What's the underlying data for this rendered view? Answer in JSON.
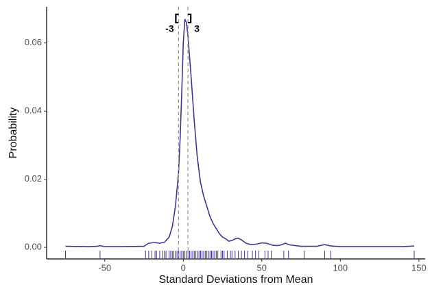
{
  "chart_data": {
    "type": "density",
    "xlabel": "Standard Deviations from Mean",
    "ylabel": "Probability",
    "color": "#3d3494",
    "x": [
      -75,
      -60,
      -55,
      -53,
      -50,
      -40,
      -25,
      -22,
      -18,
      -15,
      -12,
      -9,
      -7,
      -5,
      -3,
      -2,
      -1,
      0,
      1,
      2,
      3,
      5,
      7,
      9,
      11,
      13,
      15,
      17,
      19,
      21,
      23,
      25,
      27,
      29,
      31,
      33,
      35,
      37,
      40,
      43,
      46,
      50,
      53,
      57,
      60,
      63,
      65,
      68,
      75,
      85,
      90,
      94,
      100,
      120,
      140,
      147
    ],
    "values": [
      0.0003,
      0.0002,
      0.0003,
      0.0005,
      0.0002,
      0.0002,
      0.0003,
      0.0012,
      0.0014,
      0.0012,
      0.0015,
      0.003,
      0.006,
      0.012,
      0.022,
      0.032,
      0.045,
      0.06,
      0.067,
      0.066,
      0.062,
      0.05,
      0.037,
      0.026,
      0.019,
      0.015,
      0.012,
      0.009,
      0.007,
      0.0055,
      0.004,
      0.003,
      0.0025,
      0.0018,
      0.002,
      0.0025,
      0.0027,
      0.0022,
      0.0012,
      0.0008,
      0.0009,
      0.0013,
      0.0012,
      0.0006,
      0.0005,
      0.0008,
      0.0012,
      0.0007,
      0.0003,
      0.0003,
      0.0008,
      0.0004,
      0.0002,
      0.0002,
      0.0002,
      0.0004
    ],
    "rug": [
      -75,
      -53,
      -24,
      -22,
      -20,
      -18,
      -17,
      -15,
      -13,
      -12,
      -11,
      -9,
      -8,
      -7,
      -6,
      -5,
      -4,
      -3,
      -2,
      -1,
      0,
      1,
      2,
      3,
      4,
      5,
      6,
      7,
      8,
      9,
      10,
      11,
      12,
      13,
      14,
      15,
      16,
      17,
      18,
      19,
      20,
      21,
      22,
      24,
      25,
      26,
      28,
      30,
      31,
      33,
      35,
      37,
      39,
      41,
      44,
      46,
      48,
      52,
      54,
      56,
      64,
      67,
      77,
      90,
      94,
      147
    ],
    "vlines": [
      -3,
      3
    ],
    "xlim": [
      -87,
      154
    ],
    "ylim": [
      -0.0034,
      0.0706
    ],
    "xticks": [
      -50,
      0,
      50,
      100,
      150
    ],
    "yticks": [
      {
        "value": 0,
        "label": "0.00"
      },
      {
        "value": 0.02,
        "label": "0.02"
      },
      {
        "value": 0.04,
        "label": "0.04"
      },
      {
        "value": 0.06,
        "label": "0.06"
      }
    ]
  }
}
